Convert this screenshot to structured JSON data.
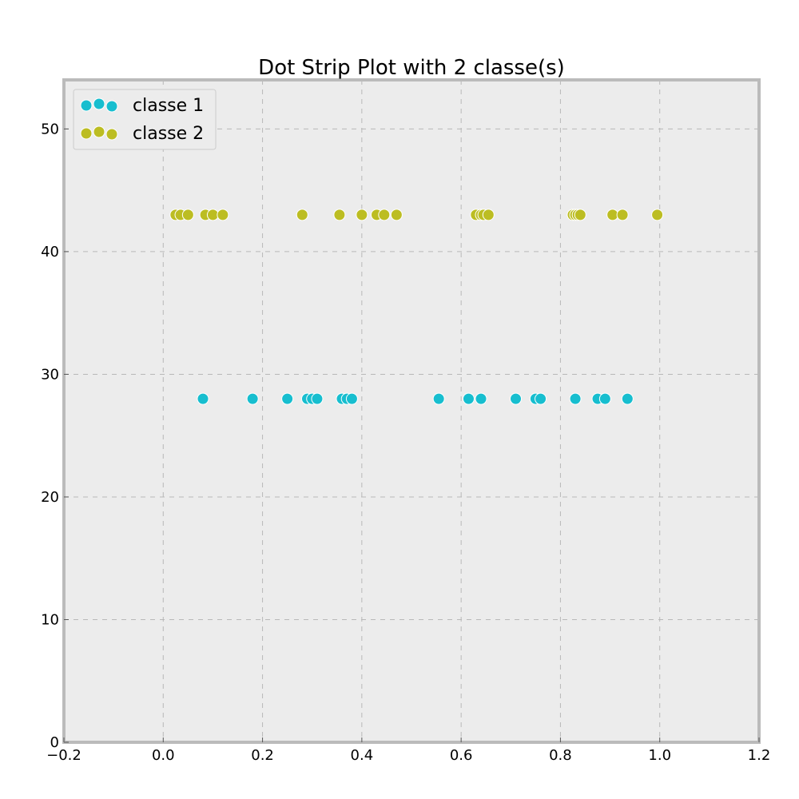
{
  "chart_data": {
    "type": "scatter",
    "title": "Dot Strip Plot with 2 classe(s)",
    "xlabel": "",
    "ylabel": "",
    "xlim": [
      -0.2,
      1.2
    ],
    "ylim": [
      0,
      54
    ],
    "x_ticks": [
      "−0.2",
      "0.0",
      "0.2",
      "0.4",
      "0.6",
      "0.8",
      "1.0",
      "1.2"
    ],
    "x_tick_values": [
      -0.2,
      0.0,
      0.2,
      0.4,
      0.6,
      0.8,
      1.0,
      1.2
    ],
    "y_ticks": [
      "0",
      "10",
      "20",
      "30",
      "40",
      "50"
    ],
    "y_tick_values": [
      0,
      10,
      20,
      30,
      40,
      50
    ],
    "grid": true,
    "legend_position": "top-left",
    "background_color": "#ececec",
    "series": [
      {
        "name": "classe 1",
        "color": "#17becf",
        "y": 28,
        "x": [
          0.08,
          0.18,
          0.25,
          0.29,
          0.3,
          0.31,
          0.36,
          0.37,
          0.38,
          0.555,
          0.615,
          0.64,
          0.71,
          0.75,
          0.76,
          0.83,
          0.875,
          0.89,
          0.935
        ]
      },
      {
        "name": "classe 2",
        "color": "#bcbd22",
        "y": 43,
        "x": [
          0.025,
          0.035,
          0.05,
          0.085,
          0.1,
          0.12,
          0.28,
          0.355,
          0.4,
          0.43,
          0.445,
          0.47,
          0.63,
          0.64,
          0.645,
          0.655,
          0.825,
          0.83,
          0.835,
          0.84,
          0.905,
          0.925,
          0.995
        ]
      }
    ]
  }
}
